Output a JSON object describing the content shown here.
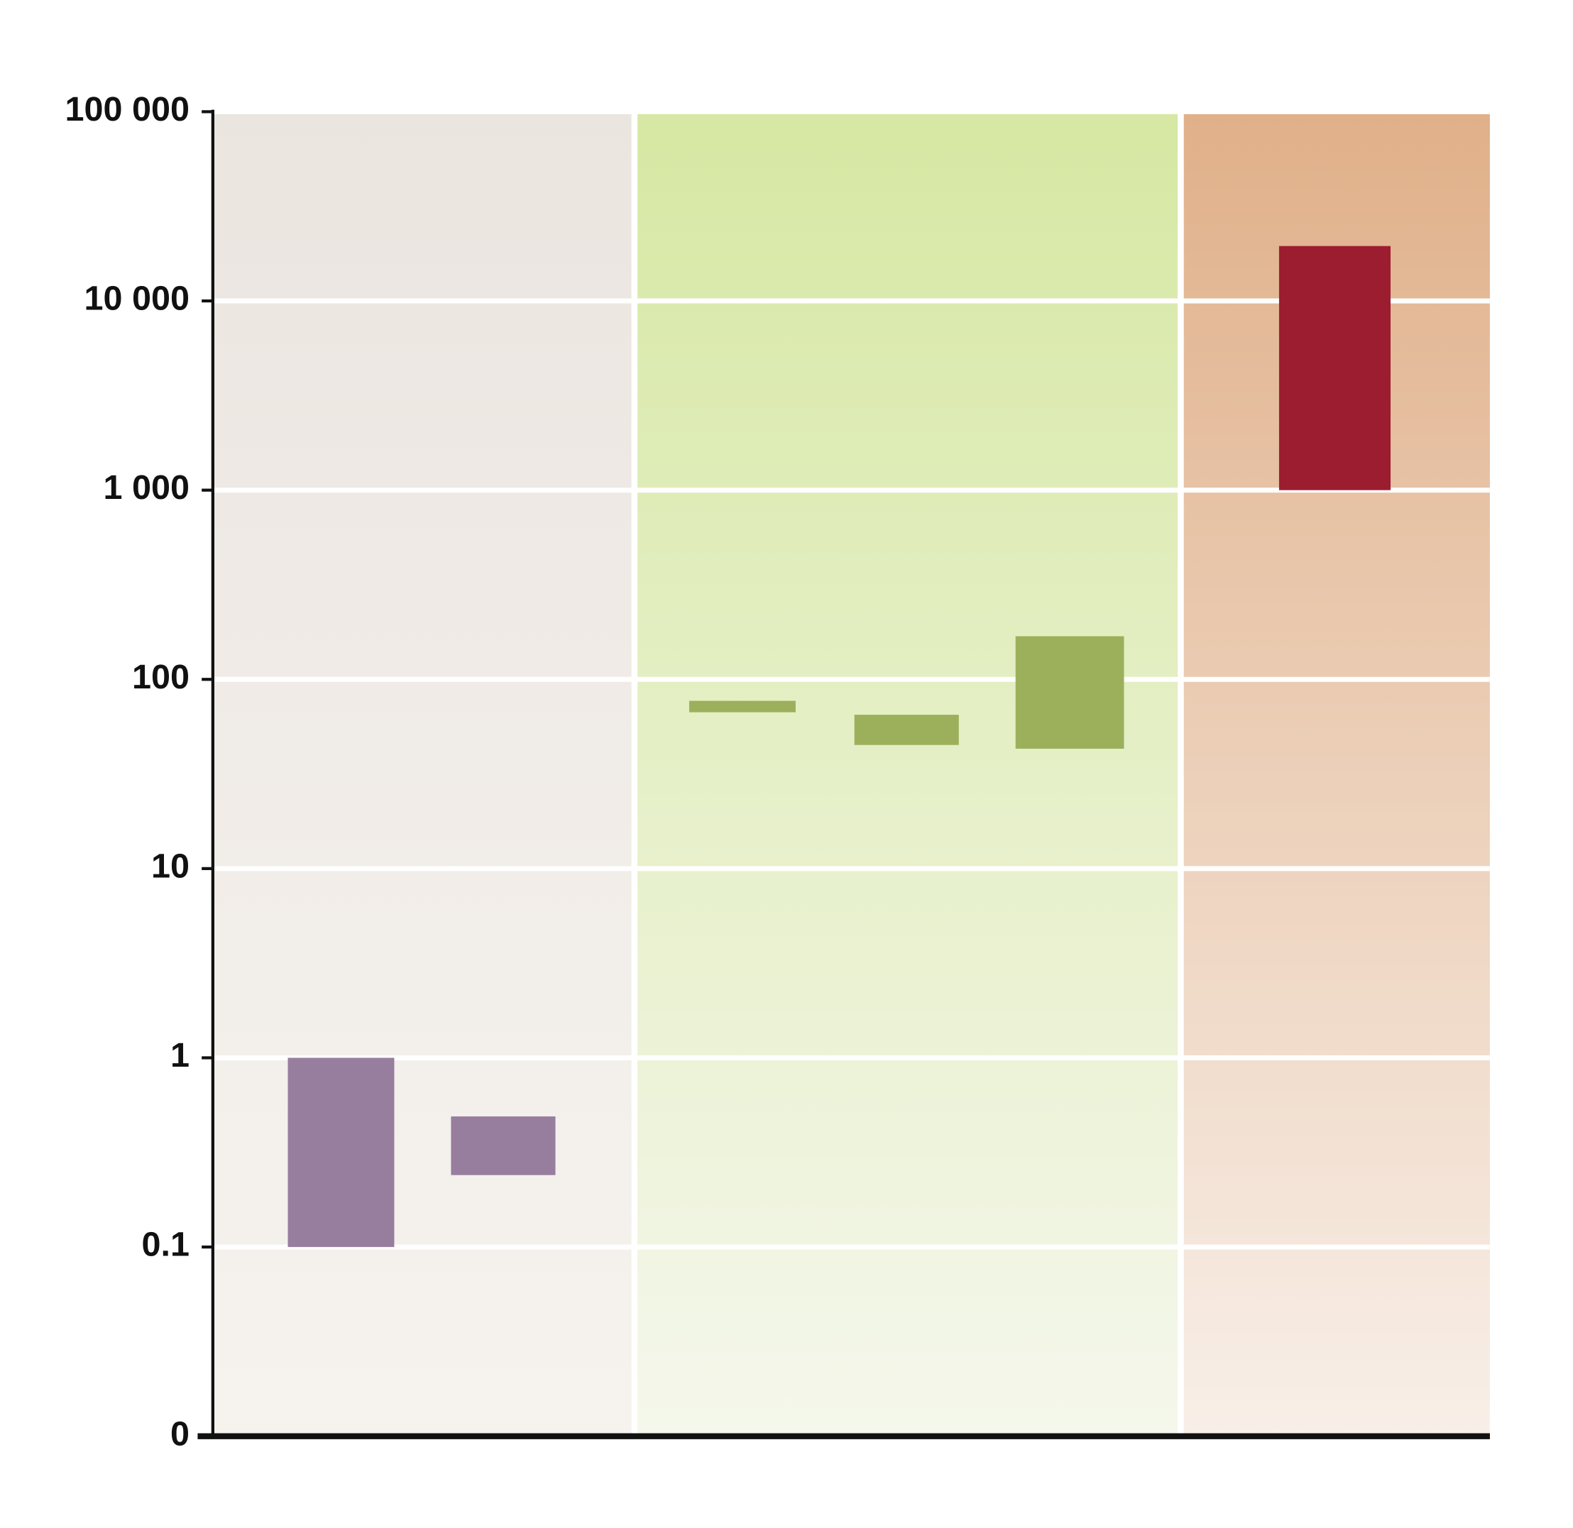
{
  "chart_data": {
    "type": "range_bar",
    "log_scale": true,
    "grid": true,
    "ylim": [
      0.01,
      100000
    ],
    "yticks": [
      {
        "value": 0.01,
        "label": "0"
      },
      0.1,
      1,
      10,
      100,
      {
        "value": 1000,
        "label": "1 000"
      },
      {
        "value": 10000,
        "label": "10 000"
      },
      {
        "value": 100000,
        "label": "100 000"
      }
    ],
    "series": [
      {
        "color": "#977e9e",
        "low": [
          0.1,
          0.24
        ],
        "high": [
          1,
          0.49
        ]
      },
      {
        "color": "#9cb05c",
        "low": [
          67,
          45,
          43
        ],
        "high": [
          77,
          65,
          169
        ]
      },
      {
        "color": "#9b1d2f",
        "low": [
          1000
        ],
        "high": [
          19500
        ]
      }
    ]
  }
}
